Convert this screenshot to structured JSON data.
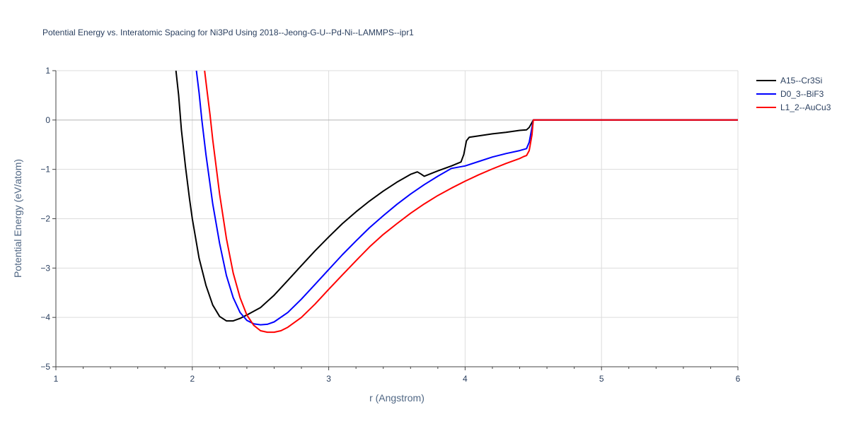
{
  "chart_data": {
    "type": "line",
    "title": "Potential Energy vs. Interatomic Spacing for Ni3Pd Using 2018--Jeong-G-U--Pd-Ni--LAMMPS--ipr1",
    "xlabel": "r (Angstrom)",
    "ylabel": "Potential Energy (eV/atom)",
    "xlim": [
      1,
      6
    ],
    "ylim": [
      -5,
      1
    ],
    "xticks": [
      1,
      2,
      3,
      4,
      5,
      6
    ],
    "yticks": [
      1,
      0,
      -1,
      -2,
      -3,
      -4,
      -5
    ],
    "ytick_labels": [
      "1",
      "0",
      "−1",
      "−2",
      "−3",
      "−4",
      "−5"
    ],
    "grid": true,
    "legend_position": "top-right",
    "series": [
      {
        "name": "A15--Cr3Si",
        "color": "#000000",
        "x": [
          1.88,
          1.9,
          1.92,
          1.95,
          1.98,
          2.0,
          2.05,
          2.1,
          2.15,
          2.2,
          2.25,
          2.3,
          2.35,
          2.4,
          2.5,
          2.6,
          2.7,
          2.8,
          2.9,
          3.0,
          3.1,
          3.2,
          3.3,
          3.4,
          3.5,
          3.6,
          3.65,
          3.68,
          3.7,
          3.8,
          3.9,
          3.97,
          3.99,
          4.01,
          4.03,
          4.1,
          4.2,
          4.3,
          4.4,
          4.45,
          4.47,
          4.49,
          4.5,
          5.0,
          6.0
        ],
        "y": [
          1.0,
          0.5,
          -0.2,
          -0.95,
          -1.6,
          -2.0,
          -2.8,
          -3.35,
          -3.75,
          -3.98,
          -4.07,
          -4.07,
          -4.02,
          -3.95,
          -3.8,
          -3.55,
          -3.25,
          -2.95,
          -2.65,
          -2.37,
          -2.1,
          -1.86,
          -1.64,
          -1.44,
          -1.26,
          -1.1,
          -1.05,
          -1.1,
          -1.14,
          -1.03,
          -0.93,
          -0.85,
          -0.7,
          -0.42,
          -0.35,
          -0.32,
          -0.28,
          -0.25,
          -0.21,
          -0.2,
          -0.15,
          -0.05,
          0.0,
          0.0,
          0.0
        ]
      },
      {
        "name": "D0_3--BiF3",
        "color": "#0000ff",
        "x": [
          2.03,
          2.05,
          2.07,
          2.1,
          2.15,
          2.2,
          2.25,
          2.3,
          2.35,
          2.4,
          2.45,
          2.5,
          2.55,
          2.6,
          2.7,
          2.8,
          2.9,
          3.0,
          3.1,
          3.2,
          3.3,
          3.4,
          3.5,
          3.6,
          3.7,
          3.8,
          3.9,
          4.0,
          4.1,
          4.2,
          4.3,
          4.4,
          4.45,
          4.47,
          4.49,
          4.5,
          5.0,
          6.0
        ],
        "y": [
          1.0,
          0.55,
          0.0,
          -0.7,
          -1.7,
          -2.5,
          -3.15,
          -3.6,
          -3.9,
          -4.06,
          -4.13,
          -4.15,
          -4.14,
          -4.09,
          -3.9,
          -3.63,
          -3.33,
          -3.03,
          -2.73,
          -2.45,
          -2.18,
          -1.94,
          -1.71,
          -1.5,
          -1.31,
          -1.14,
          -0.98,
          -0.93,
          -0.84,
          -0.75,
          -0.68,
          -0.62,
          -0.58,
          -0.45,
          -0.15,
          0.0,
          0.0,
          0.0
        ]
      },
      {
        "name": "L1_2--AuCu3",
        "color": "#ff0000",
        "x": [
          2.09,
          2.11,
          2.13,
          2.15,
          2.2,
          2.25,
          2.3,
          2.35,
          2.4,
          2.45,
          2.5,
          2.55,
          2.6,
          2.65,
          2.7,
          2.8,
          2.9,
          3.0,
          3.1,
          3.2,
          3.3,
          3.4,
          3.5,
          3.6,
          3.7,
          3.8,
          3.9,
          4.0,
          4.1,
          4.2,
          4.3,
          4.4,
          4.43,
          4.45,
          4.47,
          4.49,
          4.5,
          5.0,
          6.0
        ],
        "y": [
          1.0,
          0.55,
          0.1,
          -0.4,
          -1.5,
          -2.4,
          -3.1,
          -3.6,
          -3.95,
          -4.16,
          -4.27,
          -4.3,
          -4.3,
          -4.27,
          -4.2,
          -4.0,
          -3.73,
          -3.43,
          -3.14,
          -2.85,
          -2.57,
          -2.32,
          -2.1,
          -1.89,
          -1.7,
          -1.53,
          -1.38,
          -1.24,
          -1.11,
          -0.99,
          -0.88,
          -0.78,
          -0.74,
          -0.72,
          -0.62,
          -0.3,
          0.0,
          0.0,
          0.0
        ]
      }
    ]
  }
}
